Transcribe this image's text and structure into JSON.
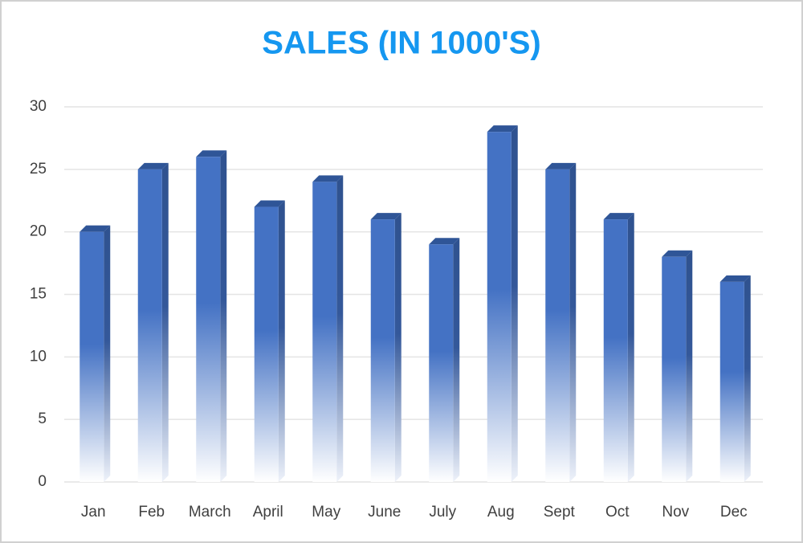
{
  "chart_data": {
    "type": "bar",
    "title": "SALES (IN 1000'S)",
    "categories": [
      "Jan",
      "Feb",
      "March",
      "April",
      "May",
      "June",
      "July",
      "Aug",
      "Sept",
      "Oct",
      "Nov",
      "Dec"
    ],
    "values": [
      20,
      25,
      26,
      22,
      24,
      21,
      19,
      28,
      25,
      21,
      18,
      16
    ],
    "color": "#4472c4",
    "ylim": [
      0,
      30
    ],
    "yticks": [
      0,
      5,
      10,
      15,
      20,
      25,
      30
    ],
    "grid": true
  }
}
